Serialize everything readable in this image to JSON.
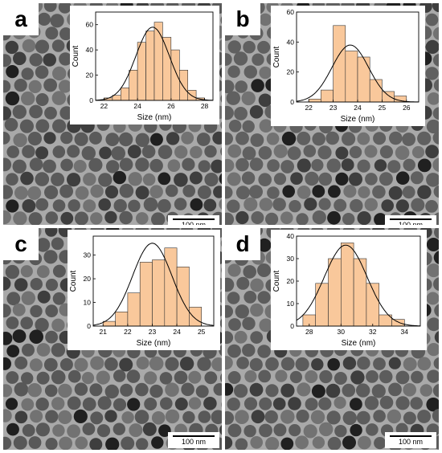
{
  "figure": {
    "scale_bar_label": "100 nm",
    "panels": [
      {
        "letter": "a",
        "particle_tone": "#5a5a5a",
        "chart_data": {
          "type": "bar",
          "xlabel": "Size (nm)",
          "ylabel": "Count",
          "xlim": [
            21.5,
            28.5
          ],
          "ylim": [
            0,
            70
          ],
          "xticks": [
            22,
            24,
            26,
            28
          ],
          "yticks": [
            0,
            20,
            40,
            60
          ],
          "bin_width": 0.5,
          "bins": [
            22,
            22.5,
            23,
            23.5,
            24,
            24.5,
            25,
            25.5,
            26,
            26.5,
            27,
            27.5
          ],
          "values": [
            2,
            4,
            10,
            24,
            46,
            55,
            62,
            50,
            40,
            24,
            8,
            2
          ],
          "fit": {
            "type": "gaussian",
            "mean": 24.9,
            "sigma": 1.0,
            "amplitude": 58
          }
        }
      },
      {
        "letter": "b",
        "particle_tone": "#606060",
        "chart_data": {
          "type": "bar",
          "xlabel": "Size (nm)",
          "ylabel": "Count",
          "xlim": [
            21.5,
            26.5
          ],
          "ylim": [
            0,
            60
          ],
          "xticks": [
            22,
            23,
            24,
            25,
            26
          ],
          "yticks": [
            0,
            20,
            40,
            60
          ],
          "bin_width": 0.5,
          "bins": [
            22,
            22.5,
            23,
            23.5,
            24,
            24.5,
            25,
            25.5
          ],
          "values": [
            2,
            8,
            51,
            34,
            30,
            15,
            7,
            4
          ],
          "fit": {
            "type": "gaussian",
            "mean": 23.7,
            "sigma": 0.75,
            "amplitude": 38
          }
        }
      },
      {
        "letter": "c",
        "particle_tone": "#585858",
        "chart_data": {
          "type": "bar",
          "xlabel": "Size (nm)",
          "ylabel": "Count",
          "xlim": [
            20.6,
            25.5
          ],
          "ylim": [
            0,
            38
          ],
          "xticks": [
            21,
            22,
            23,
            24,
            25
          ],
          "yticks": [
            0,
            10,
            20,
            30
          ],
          "bin_width": 0.5,
          "bins": [
            21,
            21.5,
            22,
            22.5,
            23,
            23.5,
            24,
            24.5
          ],
          "values": [
            2,
            6,
            14,
            27,
            28,
            33,
            25,
            8
          ],
          "fit": {
            "type": "gaussian",
            "mean": 23.0,
            "sigma": 0.8,
            "amplitude": 35
          }
        }
      },
      {
        "letter": "d",
        "particle_tone": "#5c5c5c",
        "chart_data": {
          "type": "bar",
          "xlabel": "Size (nm)",
          "ylabel": "Count",
          "xlim": [
            27.2,
            35.0
          ],
          "ylim": [
            0,
            40
          ],
          "xticks": [
            28,
            30,
            32,
            34
          ],
          "yticks": [
            0,
            10,
            20,
            30,
            40
          ],
          "bin_width": 0.8,
          "bins": [
            27.6,
            28.4,
            29.2,
            30.0,
            30.8,
            31.6,
            32.4,
            33.2
          ],
          "values": [
            5,
            19,
            30,
            37,
            30,
            19,
            5,
            3
          ],
          "fit": {
            "type": "gaussian",
            "mean": 30.3,
            "sigma": 1.35,
            "amplitude": 36
          }
        }
      }
    ]
  }
}
